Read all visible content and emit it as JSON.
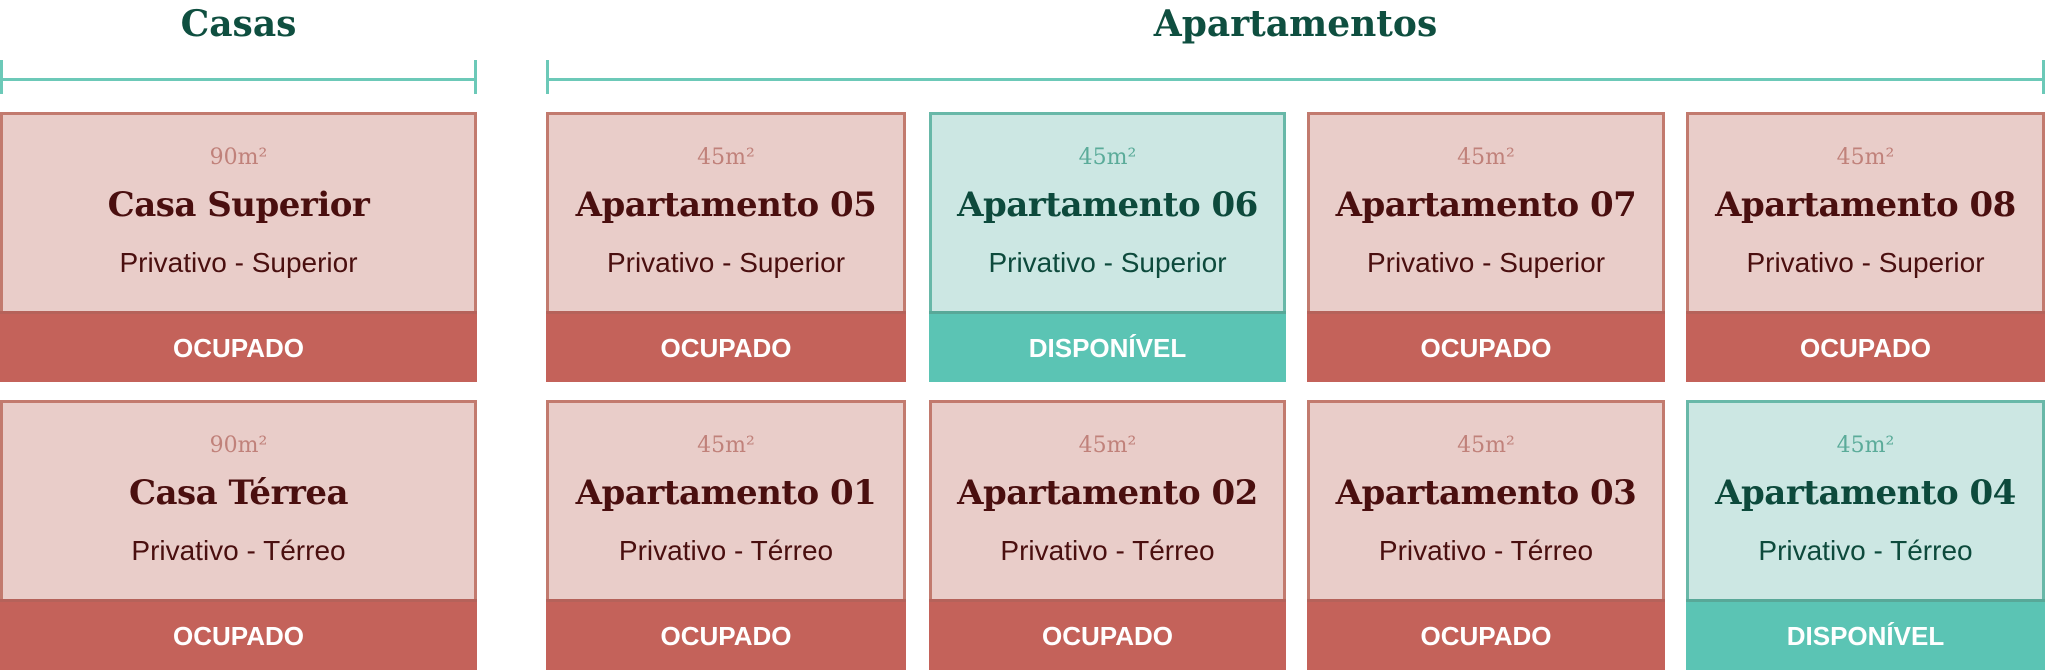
{
  "groups": [
    {
      "title": "Casas"
    },
    {
      "title": "Apartamentos"
    }
  ],
  "colors": {
    "occupied": "#c4625a",
    "available": "#5bc4b4",
    "accent_line": "#6cc9b8",
    "title": "#0f4f40"
  },
  "units": [
    {
      "area": "90m²",
      "name": "Casa Superior",
      "type": "Privativo - Superior",
      "status": "OCUPADO",
      "available": false
    },
    {
      "area": "45m²",
      "name": "Apartamento 05",
      "type": "Privativo - Superior",
      "status": "OCUPADO",
      "available": false
    },
    {
      "area": "45m²",
      "name": "Apartamento 06",
      "type": "Privativo - Superior",
      "status": "DISPONÍVEL",
      "available": true
    },
    {
      "area": "45m²",
      "name": "Apartamento 07",
      "type": "Privativo - Superior",
      "status": "OCUPADO",
      "available": false
    },
    {
      "area": "45m²",
      "name": "Apartamento 08",
      "type": "Privativo - Superior",
      "status": "OCUPADO",
      "available": false
    },
    {
      "area": "90m²",
      "name": "Casa Térrea",
      "type": "Privativo - Térreo",
      "status": "OCUPADO",
      "available": false
    },
    {
      "area": "45m²",
      "name": "Apartamento 01",
      "type": "Privativo - Térreo",
      "status": "OCUPADO",
      "available": false
    },
    {
      "area": "45m²",
      "name": "Apartamento 02",
      "type": "Privativo - Térreo",
      "status": "OCUPADO",
      "available": false
    },
    {
      "area": "45m²",
      "name": "Apartamento 03",
      "type": "Privativo - Térreo",
      "status": "OCUPADO",
      "available": false
    },
    {
      "area": "45m²",
      "name": "Apartamento 04",
      "type": "Privativo - Térreo",
      "status": "DISPONÍVEL",
      "available": true
    }
  ]
}
